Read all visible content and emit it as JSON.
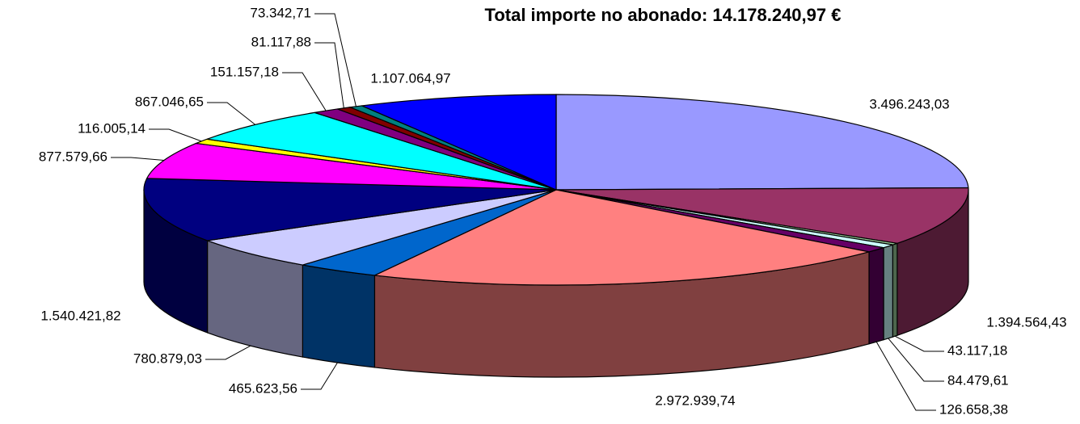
{
  "chart_data": {
    "type": "pie",
    "title": "Total importe no abonado: 14.178.240,97 €",
    "values": [
      3496243.03,
      1394564.43,
      43117.18,
      84479.61,
      126658.38,
      2972939.74,
      465623.56,
      780879.03,
      1540421.82,
      877579.66,
      116005.14,
      867046.65,
      151157.18,
      81117.88,
      73342.71,
      1107064.97
    ],
    "value_labels": [
      "3.496.243,03",
      "1.394.564,43",
      "43.117,18",
      "84.479,61",
      "126.658,38",
      "2.972.939,74",
      "465.623,56",
      "780.879,03",
      "1.540.421,82",
      "877.579,66",
      "116.005,14",
      "867.046,65",
      "151.157,18",
      "81.117,88",
      "73.342,71",
      "1.107.064,97"
    ],
    "colors": [
      "#9999ff",
      "#993366",
      "#99cc99",
      "#ccffff",
      "#660066",
      "#ff8080",
      "#0066cc",
      "#ccccff",
      "#000080",
      "#ff00ff",
      "#ffff00",
      "#00ffff",
      "#800080",
      "#800000",
      "#008080",
      "#0000ff"
    ]
  }
}
